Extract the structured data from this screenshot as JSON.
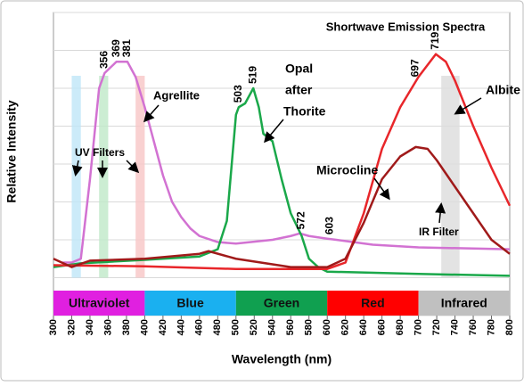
{
  "chart_data": {
    "type": "line",
    "title": "Shortwave Emission Spectra",
    "xlabel": "Wavelength (nm)",
    "ylabel": "Relative Intensity",
    "xlim": [
      300,
      800
    ],
    "xticks": [
      300,
      320,
      340,
      360,
      380,
      400,
      420,
      440,
      460,
      480,
      500,
      520,
      540,
      560,
      580,
      600,
      620,
      640,
      660,
      680,
      700,
      720,
      740,
      760,
      780,
      800
    ],
    "ylim": [
      -1,
      7
    ],
    "yticks": [
      -1,
      0,
      1,
      2,
      3,
      4,
      5,
      6,
      7
    ],
    "show_ytick_labels": false,
    "grid": true,
    "series": [
      {
        "name": "Agrellite",
        "color": "#d272d2",
        "x": [
          310,
          320,
          330,
          340,
          350,
          356,
          369,
          381,
          390,
          400,
          410,
          420,
          430,
          440,
          450,
          460,
          480,
          500,
          540,
          560,
          570,
          580,
          600,
          610,
          650,
          700,
          800
        ],
        "values": [
          0.4,
          0.4,
          0.5,
          2.6,
          5.0,
          5.4,
          5.7,
          5.7,
          5.3,
          4.5,
          3.6,
          2.7,
          2.0,
          1.6,
          1.3,
          1.1,
          0.94,
          0.9,
          1.0,
          1.1,
          1.17,
          1.1,
          1.03,
          1.0,
          0.87,
          0.8,
          0.75
        ]
      },
      {
        "name": "Opal after Thorite",
        "color": "#1aa84a",
        "x": [
          300,
          330,
          400,
          460,
          480,
          490,
          500,
          503,
          510,
          519,
          525,
          530,
          540,
          550,
          560,
          572,
          580,
          590,
          600,
          700,
          800
        ],
        "values": [
          0.28,
          0.38,
          0.47,
          0.56,
          0.75,
          1.5,
          4.3,
          4.5,
          4.6,
          5.0,
          4.5,
          3.8,
          3.6,
          2.6,
          1.7,
          1.1,
          0.5,
          0.28,
          0.16,
          0.1,
          0.05
        ]
      },
      {
        "name": "Albite",
        "color": "#e8262a",
        "x": [
          300,
          400,
          500,
          600,
          620,
          640,
          660,
          680,
          700,
          719,
          730,
          740,
          760,
          780,
          800
        ],
        "values": [
          0.33,
          0.3,
          0.23,
          0.23,
          0.4,
          1.7,
          3.4,
          4.5,
          5.3,
          5.9,
          5.7,
          5.2,
          4.0,
          2.9,
          1.9
        ]
      },
      {
        "name": "Microcline",
        "color": "#a01a1a",
        "x": [
          300,
          320,
          340,
          400,
          460,
          470,
          500,
          560,
          600,
          620,
          640,
          660,
          680,
          697,
          710,
          720,
          740,
          760,
          780,
          800
        ],
        "values": [
          0.5,
          0.28,
          0.45,
          0.5,
          0.63,
          0.7,
          0.5,
          0.28,
          0.28,
          0.5,
          1.45,
          2.6,
          3.2,
          3.45,
          3.4,
          3.1,
          2.4,
          1.7,
          1.0,
          0.63
        ]
      }
    ],
    "peaks": [
      356,
      369,
      381,
      503,
      519,
      572,
      603,
      697,
      719
    ],
    "filters": [
      {
        "range": [
          320,
          330
        ],
        "color": "#bfe6f7"
      },
      {
        "range": [
          350,
          360
        ],
        "color": "#bfe8c8"
      },
      {
        "range": [
          390,
          400
        ],
        "color": "#f7c6c6"
      },
      {
        "range": [
          725,
          745
        ],
        "color": "#dcdcdc"
      }
    ],
    "bands": [
      {
        "label": "Ultraviolet",
        "range": [
          300,
          400
        ],
        "color": "#e020e0"
      },
      {
        "label": "Blue",
        "range": [
          400,
          500
        ],
        "color": "#1ab0f0"
      },
      {
        "label": "Green",
        "range": [
          500,
          600
        ],
        "color": "#10a050"
      },
      {
        "label": "Red",
        "range": [
          600,
          700
        ],
        "color": "#ff0000"
      },
      {
        "label": "Infrared",
        "range": [
          700,
          800
        ],
        "color": "#c0c0c0"
      }
    ],
    "annotations": [
      "Agrellite",
      "UV Filters",
      "Opal",
      "after",
      "Thorite",
      "Albite",
      "Microcline",
      "IR Filter"
    ]
  }
}
